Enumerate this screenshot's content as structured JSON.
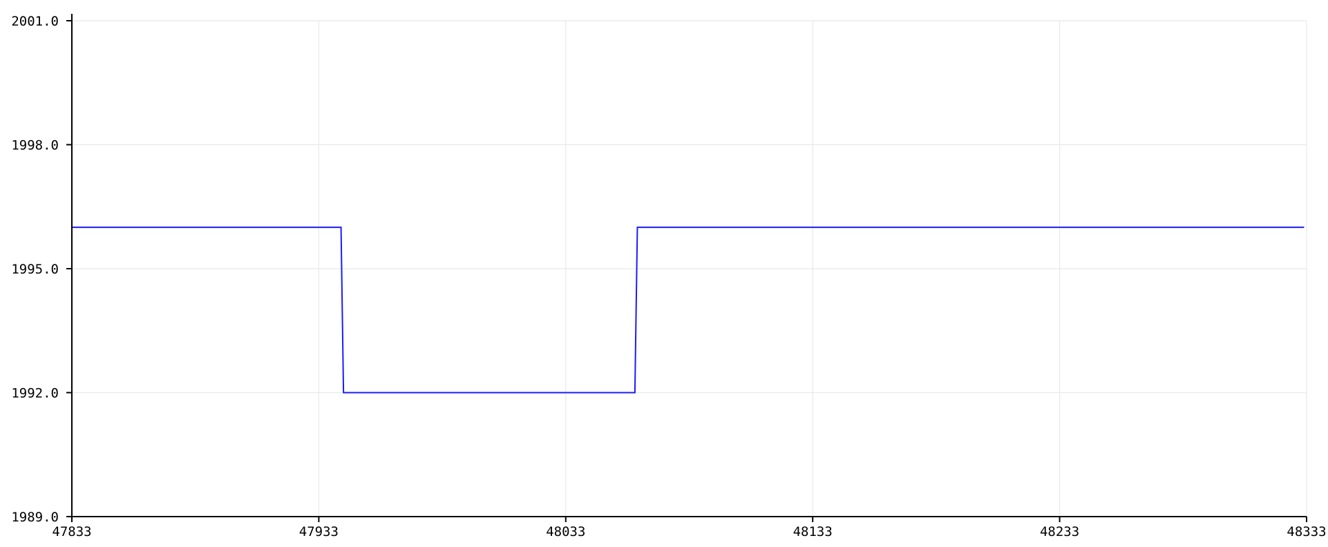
{
  "chart_data": {
    "type": "line",
    "title": "",
    "xlabel": "",
    "ylabel": "",
    "xlim": [
      47833,
      48333
    ],
    "ylim": [
      1989.0,
      2001.0
    ],
    "x_ticks": [
      "47833",
      "47933",
      "48033",
      "48133",
      "48233",
      "48333"
    ],
    "y_ticks": [
      "1989.0",
      "1992.0",
      "1995.0",
      "1998.0",
      "2001.0"
    ],
    "grid": true,
    "legend": "none",
    "series": [
      {
        "color": "#1a1aff",
        "x": [
          47833,
          47942,
          47943,
          48061,
          48062,
          48332
        ],
        "y": [
          1996,
          1996,
          1992,
          1992,
          1996,
          1996
        ]
      }
    ]
  }
}
